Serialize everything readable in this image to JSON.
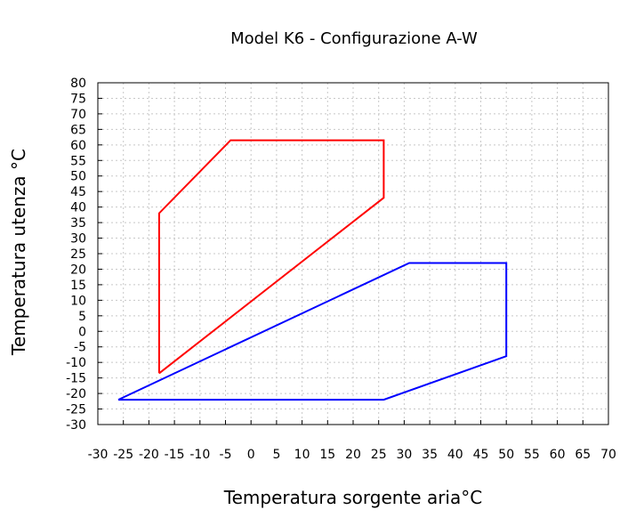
{
  "chart_data": {
    "type": "line",
    "title": "Model K6 - Configurazione A-W",
    "xlabel": "Temperatura sorgente aria°C",
    "ylabel": "Temperatura utenza °C",
    "xlim": [
      -30,
      70
    ],
    "ylim": [
      -30,
      80
    ],
    "xticks": [
      -30,
      -25,
      -20,
      -15,
      -10,
      -5,
      0,
      5,
      10,
      15,
      20,
      25,
      30,
      35,
      40,
      45,
      50,
      55,
      60,
      65,
      70
    ],
    "yticks": [
      -30,
      -25,
      -20,
      -15,
      -10,
      -5,
      0,
      5,
      10,
      15,
      20,
      25,
      30,
      35,
      40,
      45,
      50,
      55,
      60,
      65,
      70,
      75,
      80
    ],
    "grid": true,
    "legend": "none",
    "series": [
      {
        "color": "#ff0000",
        "x": [
          -18,
          -18,
          -4,
          26,
          26,
          -18
        ],
        "y": [
          -13.5,
          38,
          61.5,
          61.5,
          43,
          -13.5
        ]
      },
      {
        "color": "#0000ff",
        "x": [
          -26,
          26,
          50,
          50,
          31,
          -26
        ],
        "y": [
          -22,
          -22,
          -8,
          22,
          22,
          -22
        ]
      }
    ]
  }
}
